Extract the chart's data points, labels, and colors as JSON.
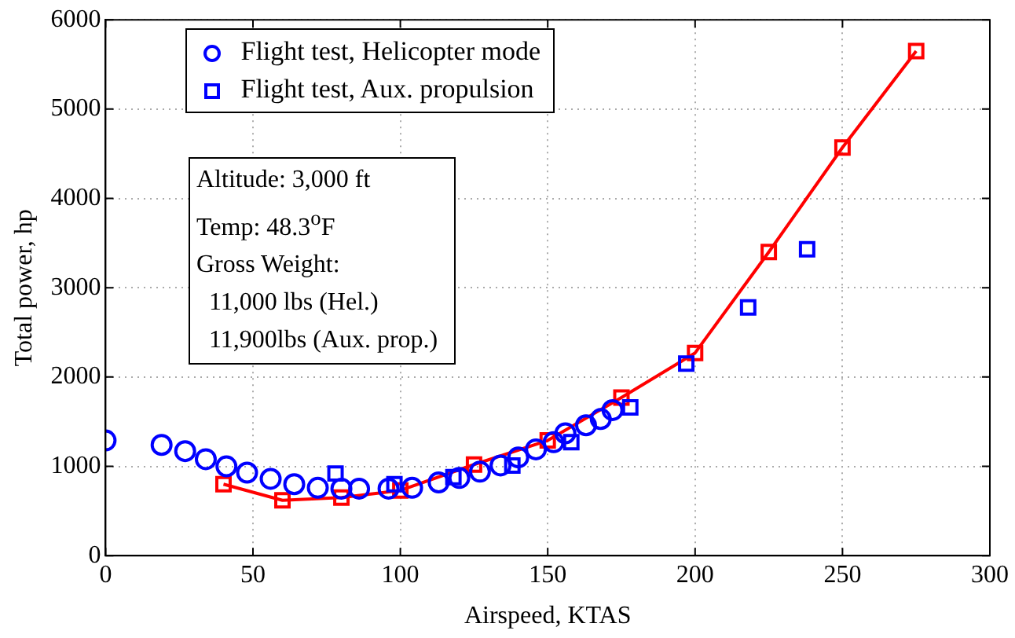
{
  "chart_data": {
    "type": "scatter",
    "xlabel": "Airspeed, KTAS",
    "ylabel": "Total power, hp",
    "xlim": [
      0,
      300
    ],
    "xticks": [
      0,
      50,
      100,
      150,
      200,
      250,
      300
    ],
    "ylim": [
      0,
      6000
    ],
    "yticks": [
      0,
      1000,
      2000,
      3000,
      4000,
      5000,
      6000
    ],
    "grid": true,
    "legend": "top left",
    "annotations": [
      "Altitude: 3,000 ft",
      "Temp: 48.3$^{o}$F",
      "Gross Weight:",
      "  11,000 lbs (Hel.)",
      "  11,900lbs (Aux. prop.)"
    ],
    "series": [
      {
        "name": "Flight test, Helicopter mode",
        "type": "scatter",
        "marker": "circle",
        "color": "#0000ff",
        "x": [
          0,
          19,
          27,
          34,
          41,
          48,
          56,
          64,
          72,
          80,
          86,
          96,
          104,
          113,
          120,
          127,
          134,
          140,
          146,
          152,
          156,
          163,
          168,
          172
        ],
        "values": [
          1290,
          1240,
          1170,
          1080,
          1000,
          930,
          860,
          800,
          760,
          750,
          750,
          750,
          760,
          820,
          870,
          940,
          1010,
          1100,
          1190,
          1270,
          1370,
          1460,
          1530,
          1630
        ]
      },
      {
        "name": "Flight test, Aux. propulsion",
        "type": "scatter",
        "marker": "square",
        "color": "#0000ff",
        "x": [
          78,
          98,
          118,
          138,
          158,
          178,
          197,
          218,
          238
        ],
        "values": [
          920,
          800,
          880,
          1010,
          1270,
          1660,
          2150,
          2780,
          3430
        ]
      },
      {
        "type": "line",
        "marker": "square",
        "line_style": "solid",
        "color": "#ff0000",
        "x": [
          40,
          60,
          80,
          100,
          125,
          150,
          175,
          200,
          225,
          250,
          275
        ],
        "values": [
          800,
          620,
          650,
          730,
          1020,
          1290,
          1770,
          2270,
          3400,
          4570,
          5650
        ]
      }
    ]
  }
}
